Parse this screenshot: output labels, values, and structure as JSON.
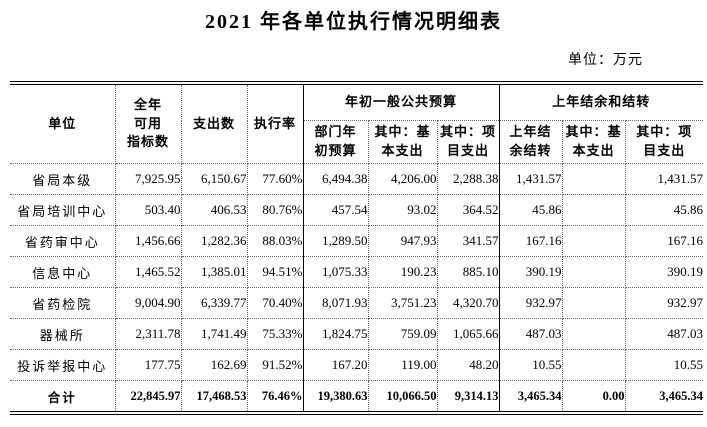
{
  "page": {
    "title": "2021 年各单位执行情况明细表",
    "unit_note": "单位：万元"
  },
  "table": {
    "header": {
      "unit": "单位",
      "annual_quota": "全年\n可用\n指标数",
      "expenditure": "支出数",
      "execution_rate": "执行率",
      "group_public_budget": "年初一般公共预算",
      "group_carryover": "上年结余和结转",
      "dept_initial_budget": "部门年\n初预算",
      "basic_expense_1": "其中：基\n本支出",
      "project_expense_1": "其中：项\n目支出",
      "carryover_balance": "上年结\n余结转",
      "basic_expense_2": "其中：基\n本支出",
      "project_expense_2": "其中：项\n目支出"
    },
    "rows": [
      {
        "unit": "省局本级",
        "values": [
          "7,925.95",
          "6,150.67",
          "77.60%",
          "6,494.38",
          "4,206.00",
          "2,288.38",
          "1,431.57",
          "",
          "1,431.57"
        ]
      },
      {
        "unit": "省局培训中心",
        "values": [
          "503.40",
          "406.53",
          "80.76%",
          "457.54",
          "93.02",
          "364.52",
          "45.86",
          "",
          "45.86"
        ]
      },
      {
        "unit": "省药审中心",
        "values": [
          "1,456.66",
          "1,282.36",
          "88.03%",
          "1,289.50",
          "947.93",
          "341.57",
          "167.16",
          "",
          "167.16"
        ]
      },
      {
        "unit": "信息中心",
        "values": [
          "1,465.52",
          "1,385.01",
          "94.51%",
          "1,075.33",
          "190.23",
          "885.10",
          "390.19",
          "",
          "390.19"
        ]
      },
      {
        "unit": "省药检院",
        "values": [
          "9,004.90",
          "6,339.77",
          "70.40%",
          "8,071.93",
          "3,751.23",
          "4,320.70",
          "932.97",
          "",
          "932.97"
        ]
      },
      {
        "unit": "器械所",
        "values": [
          "2,311.78",
          "1,741.49",
          "75.33%",
          "1,824.75",
          "759.09",
          "1,065.66",
          "487.03",
          "",
          "487.03"
        ]
      },
      {
        "unit": "投诉举报中心",
        "values": [
          "177.75",
          "162.69",
          "91.52%",
          "167.20",
          "119.00",
          "48.20",
          "10.55",
          "",
          "10.55"
        ]
      }
    ],
    "total_row": {
      "unit": "合计",
      "values": [
        "22,845.97",
        "17,468.53",
        "76.46%",
        "19,380.63",
        "10,066.50",
        "9,314.13",
        "3,465.34",
        "0.00",
        "3,465.34"
      ]
    }
  }
}
